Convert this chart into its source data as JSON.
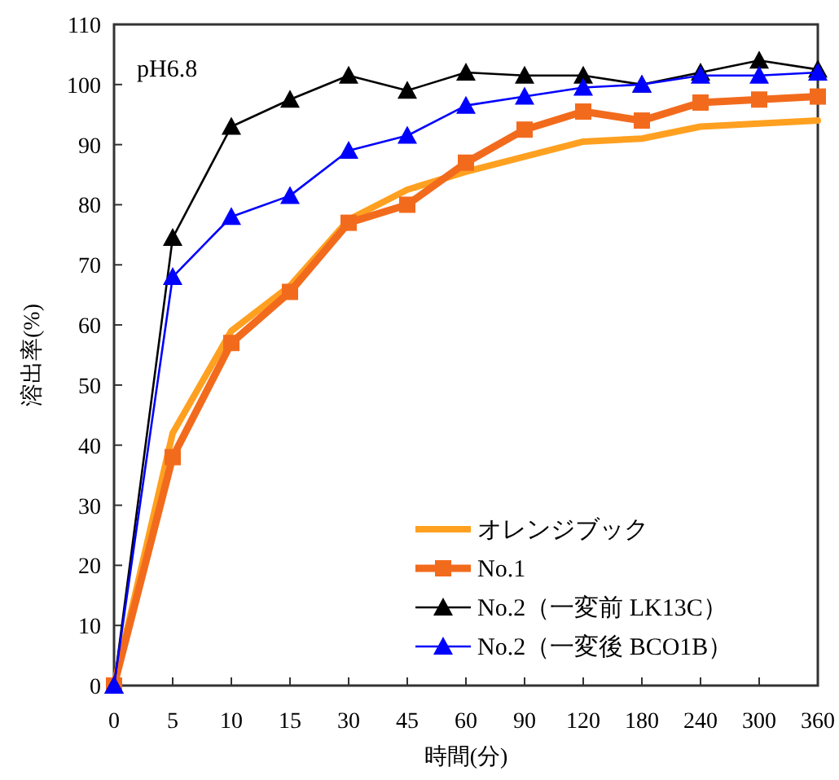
{
  "chart_data": {
    "type": "line",
    "ylabel": "溶出率(%)",
    "xlabel": "時間(分)",
    "annotations": [
      "pH6.8"
    ],
    "categories": [
      "0",
      "5",
      "10",
      "15",
      "30",
      "45",
      "60",
      "90",
      "120",
      "180",
      "240",
      "300",
      "360"
    ],
    "ylim": [
      0,
      110
    ],
    "yticks": [
      0,
      10,
      20,
      30,
      40,
      50,
      60,
      70,
      80,
      90,
      100,
      110
    ],
    "grid": false,
    "legend": "bottom right",
    "series": [
      {
        "name": "オレンジブック",
        "color": "#ffa020",
        "marker": "none",
        "values": [
          0,
          42,
          59,
          66.5,
          77.5,
          82.5,
          85.5,
          88,
          90.5,
          91,
          93,
          93.5,
          94
        ]
      },
      {
        "name": "No.1",
        "color": "#f26b1d",
        "marker": "square",
        "values": [
          0,
          38,
          57,
          65.5,
          77,
          80,
          87,
          92.5,
          95.5,
          94,
          97,
          97.5,
          98
        ]
      },
      {
        "name": "No.2（一変前 LK13C）",
        "color": "#000000",
        "marker": "triangle",
        "values": [
          0,
          74.5,
          93,
          97.5,
          101.5,
          99,
          102,
          101.5,
          101.5,
          100,
          102,
          104,
          102.5
        ]
      },
      {
        "name": "No.2（一変後 BCO1B）",
        "color": "#0000ff",
        "marker": "triangle",
        "values": [
          0,
          68,
          78,
          81.5,
          89,
          91.5,
          96.5,
          98,
          99.5,
          100,
          101.5,
          101.5,
          102
        ]
      }
    ]
  }
}
